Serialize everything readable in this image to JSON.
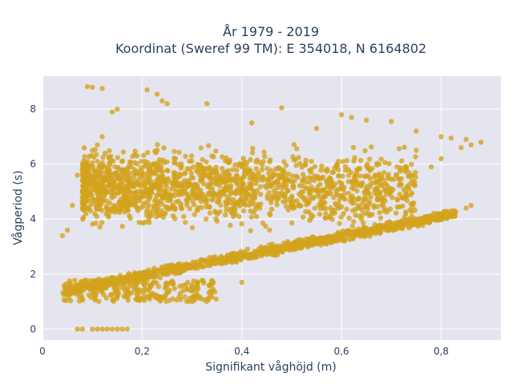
{
  "chart_data": {
    "type": "scatter",
    "title_line1": "År 1979 - 2019",
    "title_line2": "Koordinat (Sweref 99 TM): E 354018, N 6164802",
    "xlabel": "Signifikant våghöjd (m)",
    "ylabel": "Vågperiod (s)",
    "xlim": [
      0,
      0.92
    ],
    "ylim": [
      -0.4,
      9.2
    ],
    "xticks": [
      0,
      0.2,
      0.4,
      0.6,
      0.8
    ],
    "xtick_labels": [
      "0",
      "0,2",
      "0,4",
      "0,6",
      "0,8"
    ],
    "yticks": [
      0,
      2,
      4,
      6,
      8
    ],
    "ytick_labels": [
      "0",
      "2",
      "4",
      "6",
      "8"
    ],
    "grid": true,
    "marker_color": "#d4a31c",
    "plot_bg": "#e5e5ef",
    "point_groups": [
      {
        "kind": "dense_band",
        "x_from": 0.05,
        "x_to": 0.83,
        "y_start": 1.4,
        "y_end": 4.2,
        "spread": 0.25
      },
      {
        "kind": "dense_cloud",
        "x_from": 0.08,
        "x_to": 0.75,
        "y_from": 2.5,
        "y_to": 7.0
      },
      {
        "kind": "low_band",
        "x_from": 0.04,
        "x_to": 0.35,
        "y_from": 1.0,
        "y_to": 1.8
      }
    ],
    "points": [
      [
        0.09,
        8.82
      ],
      [
        0.1,
        8.8
      ],
      [
        0.12,
        8.75
      ],
      [
        0.15,
        8.0
      ],
      [
        0.14,
        7.9
      ],
      [
        0.21,
        8.7
      ],
      [
        0.23,
        8.55
      ],
      [
        0.24,
        8.3
      ],
      [
        0.25,
        8.2
      ],
      [
        0.33,
        8.2
      ],
      [
        0.48,
        8.05
      ],
      [
        0.42,
        7.5
      ],
      [
        0.55,
        7.3
      ],
      [
        0.6,
        7.8
      ],
      [
        0.62,
        7.7
      ],
      [
        0.65,
        7.6
      ],
      [
        0.7,
        7.55
      ],
      [
        0.75,
        7.2
      ],
      [
        0.8,
        7.0
      ],
      [
        0.82,
        6.95
      ],
      [
        0.85,
        6.9
      ],
      [
        0.88,
        6.8
      ],
      [
        0.86,
        6.7
      ],
      [
        0.84,
        6.6
      ],
      [
        0.8,
        6.2
      ],
      [
        0.78,
        5.9
      ],
      [
        0.75,
        6.5
      ],
      [
        0.72,
        5.8
      ],
      [
        0.7,
        5.0
      ],
      [
        0.68,
        4.8
      ],
      [
        0.04,
        3.4
      ],
      [
        0.05,
        3.6
      ],
      [
        0.06,
        4.5
      ],
      [
        0.07,
        5.6
      ],
      [
        0.08,
        5.8
      ],
      [
        0.09,
        6.1
      ],
      [
        0.1,
        6.5
      ],
      [
        0.11,
        6.7
      ],
      [
        0.12,
        7.0
      ],
      [
        0.07,
        0.0
      ],
      [
        0.08,
        0.0
      ],
      [
        0.1,
        0.0
      ],
      [
        0.11,
        0.0
      ],
      [
        0.12,
        0.0
      ],
      [
        0.13,
        0.0
      ],
      [
        0.14,
        0.0
      ],
      [
        0.15,
        0.0
      ],
      [
        0.16,
        0.0
      ],
      [
        0.17,
        0.0
      ],
      [
        0.4,
        1.7
      ],
      [
        0.3,
        1.6
      ],
      [
        0.25,
        1.55
      ],
      [
        0.85,
        4.4
      ],
      [
        0.86,
        4.5
      ],
      [
        0.82,
        4.3
      ],
      [
        0.79,
        4.2
      ]
    ]
  }
}
